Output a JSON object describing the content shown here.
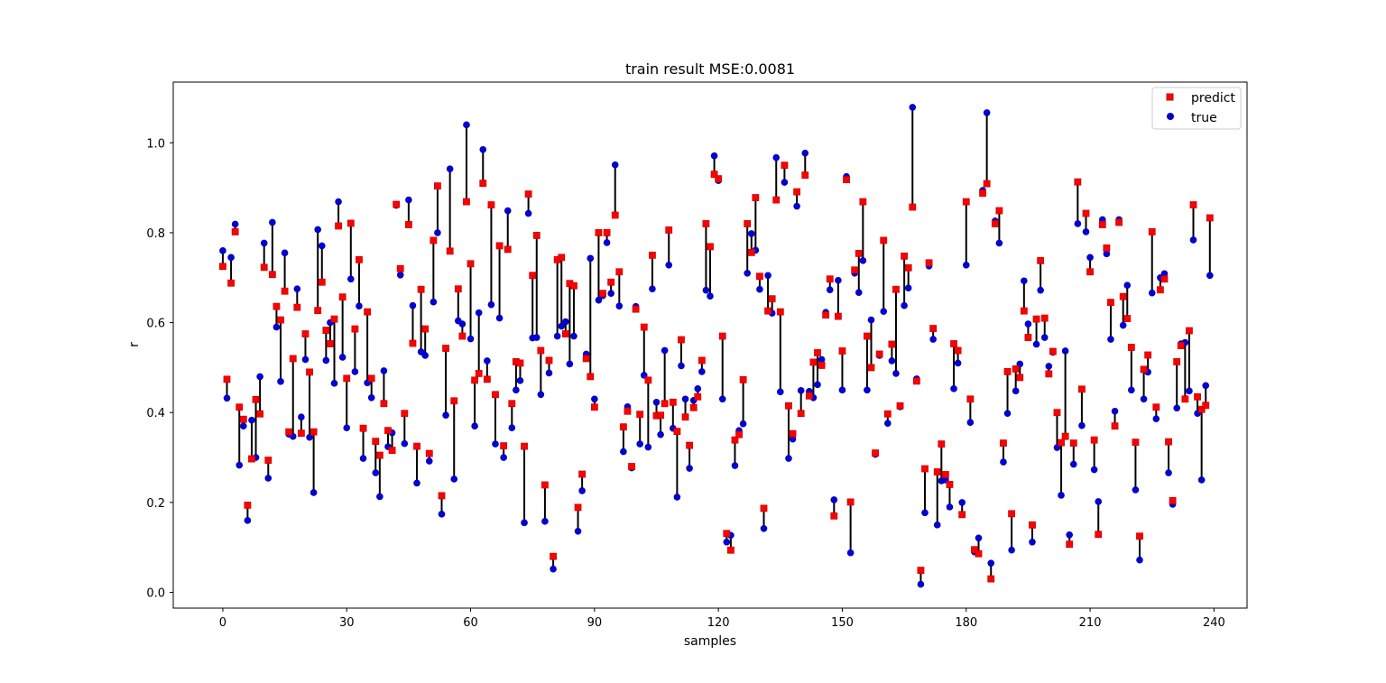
{
  "chart_data": {
    "type": "scatter",
    "title": "train result MSE:0.0081",
    "xlabel": "samples",
    "ylabel": "r",
    "xlim": [
      -12,
      248
    ],
    "ylim": [
      -0.035,
      1.135
    ],
    "xticks": [
      0,
      30,
      60,
      90,
      120,
      150,
      180,
      210,
      240
    ],
    "yticks": [
      0.0,
      0.2,
      0.4,
      0.6,
      0.8,
      1.0
    ],
    "xtick_labels": [
      "0",
      "30",
      "60",
      "90",
      "120",
      "150",
      "180",
      "210",
      "240"
    ],
    "ytick_labels": [
      "0.0",
      "0.2",
      "0.4",
      "0.6",
      "0.8",
      "1.0"
    ],
    "grid": false,
    "legend_position": "upper right",
    "connector_color": "#000000",
    "series": [
      {
        "name": "predict",
        "marker": "square",
        "color": "#ff0000",
        "edge_color": "#cc0000",
        "values": [
          0.725,
          0.474,
          0.688,
          0.802,
          0.412,
          0.385,
          0.194,
          0.297,
          0.429,
          0.397,
          0.723,
          0.294,
          0.707,
          0.636,
          0.606,
          0.67,
          0.357,
          0.52,
          0.634,
          0.354,
          0.575,
          0.49,
          0.357,
          0.627,
          0.69,
          0.583,
          0.553,
          0.608,
          0.815,
          0.657,
          0.476,
          0.821,
          0.586,
          0.74,
          0.365,
          0.624,
          0.476,
          0.336,
          0.305,
          0.42,
          0.36,
          0.316,
          0.863,
          0.72,
          0.398,
          0.818,
          0.554,
          0.325,
          0.674,
          0.586,
          0.309,
          0.783,
          0.904,
          0.215,
          0.543,
          0.759,
          0.426,
          0.675,
          0.57,
          0.869,
          0.731,
          0.472,
          0.487,
          0.91,
          0.474,
          0.862,
          0.44,
          0.771,
          0.326,
          0.763,
          0.42,
          0.513,
          0.51,
          0.325,
          0.886,
          0.705,
          0.794,
          0.538,
          0.239,
          0.516,
          0.08,
          0.74,
          0.745,
          0.575,
          0.687,
          0.682,
          0.189,
          0.263,
          0.52,
          0.48,
          0.412,
          0.8,
          0.665,
          0.8,
          0.69,
          0.839,
          0.713,
          0.368,
          0.403,
          0.28,
          0.63,
          0.396,
          0.59,
          0.472,
          0.75,
          0.393,
          0.394,
          0.42,
          0.806,
          0.423,
          0.358,
          0.562,
          0.39,
          0.327,
          0.411,
          0.435,
          0.516,
          0.82,
          0.769,
          0.93,
          0.92,
          0.57,
          0.131,
          0.094,
          0.339,
          0.351,
          0.473,
          0.82,
          0.756,
          0.878,
          0.703,
          0.187,
          0.626,
          0.653,
          0.873,
          0.624,
          0.95,
          0.415,
          0.353,
          0.891,
          0.398,
          0.928,
          0.437,
          0.512,
          0.533,
          0.505,
          0.617,
          0.697,
          0.17,
          0.614,
          0.537,
          0.918,
          0.201,
          0.717,
          0.754,
          0.869,
          0.57,
          0.5,
          0.31,
          0.53,
          0.783,
          0.397,
          0.552,
          0.674,
          0.415,
          0.748,
          0.722,
          0.857,
          0.47,
          0.049,
          0.275,
          0.733,
          0.587,
          0.268,
          0.33,
          0.262,
          0.24,
          0.553,
          0.538,
          0.173,
          0.869,
          0.43,
          0.095,
          0.086,
          0.888,
          0.909,
          0.03,
          0.82,
          0.849,
          0.332,
          0.491,
          0.175,
          0.497,
          0.478,
          0.626,
          0.567,
          0.15,
          0.608,
          0.738,
          0.61,
          0.486,
          0.536,
          0.4,
          0.333,
          0.347,
          0.107,
          0.332,
          0.913,
          0.452,
          0.843,
          0.713,
          0.339,
          0.129,
          0.818,
          0.766,
          0.645,
          0.37,
          0.823,
          0.658,
          0.609,
          0.545,
          0.334,
          0.125,
          0.496,
          0.528,
          0.802,
          0.412,
          0.673,
          0.697,
          0.335,
          0.204,
          0.513,
          0.549,
          0.43,
          0.582,
          0.862,
          0.435,
          0.407,
          0.416,
          0.833
        ]
      },
      {
        "name": "true",
        "marker": "circle",
        "color": "#0000dd",
        "edge_color": "#0000aa",
        "values": [
          0.76,
          0.432,
          0.745,
          0.819,
          0.283,
          0.37,
          0.16,
          0.383,
          0.3,
          0.48,
          0.777,
          0.254,
          0.823,
          0.59,
          0.469,
          0.755,
          0.352,
          0.347,
          0.675,
          0.39,
          0.518,
          0.345,
          0.222,
          0.807,
          0.771,
          0.516,
          0.6,
          0.465,
          0.869,
          0.523,
          0.366,
          0.697,
          0.491,
          0.637,
          0.298,
          0.466,
          0.433,
          0.266,
          0.213,
          0.493,
          0.324,
          0.355,
          0.861,
          0.706,
          0.331,
          0.873,
          0.638,
          0.243,
          0.535,
          0.527,
          0.292,
          0.646,
          0.8,
          0.174,
          0.394,
          0.942,
          0.252,
          0.604,
          0.597,
          1.04,
          0.564,
          0.37,
          0.622,
          0.985,
          0.515,
          0.64,
          0.33,
          0.61,
          0.3,
          0.849,
          0.366,
          0.45,
          0.471,
          0.155,
          0.843,
          0.566,
          0.567,
          0.44,
          0.158,
          0.488,
          0.052,
          0.57,
          0.592,
          0.602,
          0.508,
          0.57,
          0.136,
          0.226,
          0.53,
          0.743,
          0.43,
          0.65,
          0.66,
          0.778,
          0.665,
          0.951,
          0.637,
          0.313,
          0.413,
          0.277,
          0.636,
          0.33,
          0.483,
          0.323,
          0.675,
          0.423,
          0.351,
          0.538,
          0.728,
          0.365,
          0.212,
          0.504,
          0.43,
          0.276,
          0.427,
          0.453,
          0.491,
          0.672,
          0.659,
          0.971,
          0.916,
          0.43,
          0.112,
          0.127,
          0.282,
          0.36,
          0.375,
          0.71,
          0.798,
          0.761,
          0.674,
          0.142,
          0.705,
          0.621,
          0.967,
          0.446,
          0.912,
          0.298,
          0.341,
          0.859,
          0.449,
          0.977,
          0.447,
          0.433,
          0.462,
          0.518,
          0.623,
          0.673,
          0.206,
          0.694,
          0.45,
          0.925,
          0.088,
          0.71,
          0.667,
          0.738,
          0.45,
          0.606,
          0.307,
          0.527,
          0.625,
          0.376,
          0.515,
          0.487,
          0.413,
          0.638,
          0.677,
          1.079,
          0.475,
          0.018,
          0.177,
          0.726,
          0.563,
          0.15,
          0.248,
          0.25,
          0.19,
          0.453,
          0.51,
          0.2,
          0.728,
          0.378,
          0.09,
          0.121,
          0.894,
          1.067,
          0.065,
          0.826,
          0.777,
          0.29,
          0.398,
          0.094,
          0.448,
          0.508,
          0.693,
          0.597,
          0.112,
          0.552,
          0.672,
          0.567,
          0.503,
          0.534,
          0.322,
          0.216,
          0.537,
          0.128,
          0.285,
          0.82,
          0.371,
          0.802,
          0.745,
          0.273,
          0.202,
          0.829,
          0.753,
          0.563,
          0.403,
          0.829,
          0.594,
          0.683,
          0.45,
          0.228,
          0.072,
          0.43,
          0.49,
          0.666,
          0.386,
          0.7,
          0.709,
          0.266,
          0.196,
          0.41,
          0.553,
          0.556,
          0.448,
          0.784,
          0.398,
          0.25,
          0.46,
          0.705
        ]
      }
    ]
  }
}
